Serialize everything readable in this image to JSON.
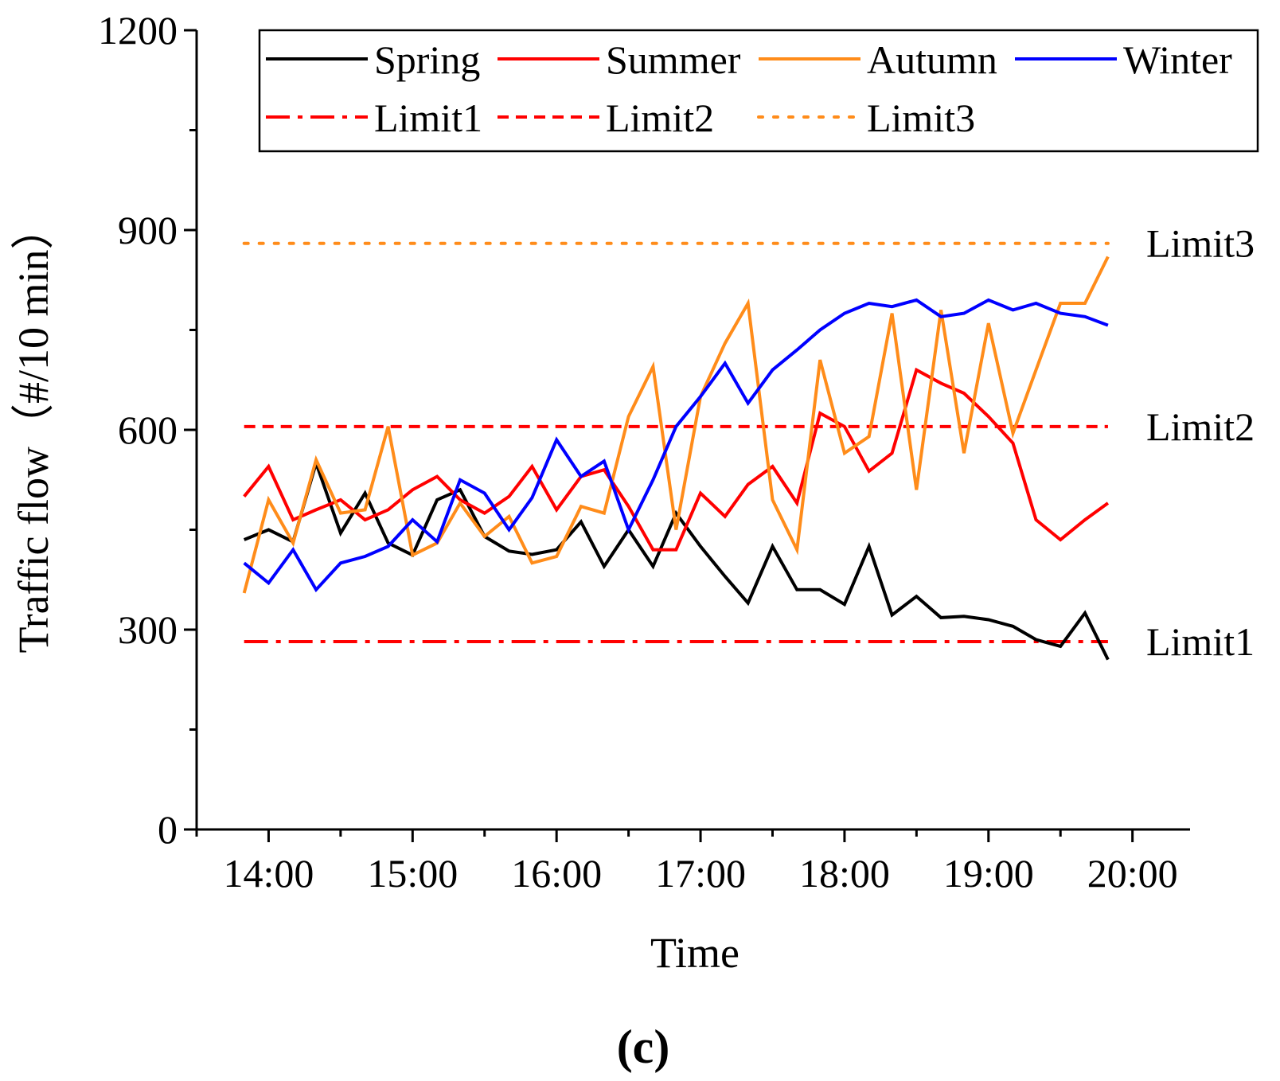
{
  "chart_data": {
    "type": "line",
    "caption": "(c)",
    "xlabel": "Time",
    "ylabel": "Traffic flow（#/10 min）",
    "ylim": [
      0,
      1200
    ],
    "yticks": [
      0,
      300,
      600,
      900,
      1200
    ],
    "xlim": [
      13.5,
      20.4
    ],
    "xtick_values": [
      14,
      15,
      16,
      17,
      18,
      19,
      20
    ],
    "xticks": [
      "14:00",
      "15:00",
      "16:00",
      "17:00",
      "18:00",
      "19:00",
      "20:00"
    ],
    "x": [
      13.83,
      14.0,
      14.17,
      14.33,
      14.5,
      14.67,
      14.83,
      15.0,
      15.17,
      15.33,
      15.5,
      15.67,
      15.83,
      16.0,
      16.17,
      16.33,
      16.5,
      16.67,
      16.83,
      17.0,
      17.17,
      17.33,
      17.5,
      17.67,
      17.83,
      18.0,
      18.17,
      18.33,
      18.5,
      18.67,
      18.83,
      19.0,
      19.17,
      19.33,
      19.5,
      19.67,
      19.83
    ],
    "series": [
      {
        "name": "Spring",
        "color": "#000000",
        "values": [
          435,
          450,
          432,
          550,
          445,
          505,
          430,
          412,
          495,
          510,
          440,
          418,
          413,
          420,
          462,
          395,
          450,
          395,
          475,
          425,
          380,
          340,
          425,
          360,
          360,
          338,
          425,
          322,
          350,
          318,
          320,
          315,
          305,
          285,
          275,
          325,
          255
        ]
      },
      {
        "name": "Summer",
        "color": "#ff0000",
        "values": [
          500,
          545,
          465,
          480,
          495,
          465,
          480,
          510,
          530,
          495,
          475,
          500,
          545,
          480,
          530,
          540,
          485,
          420,
          420,
          505,
          470,
          518,
          545,
          490,
          625,
          605,
          538,
          565,
          690,
          670,
          655,
          620,
          580,
          465,
          435,
          465,
          490
        ]
      },
      {
        "name": "Autumn",
        "color": "#ff8c1a",
        "values": [
          355,
          495,
          430,
          555,
          475,
          480,
          605,
          412,
          430,
          490,
          440,
          470,
          400,
          410,
          485,
          475,
          620,
          695,
          450,
          650,
          730,
          790,
          495,
          420,
          705,
          565,
          590,
          775,
          510,
          780,
          565,
          760,
          595,
          690,
          790,
          790,
          860
        ]
      },
      {
        "name": "Winter",
        "color": "#0000ff",
        "values": [
          400,
          370,
          420,
          360,
          400,
          410,
          425,
          465,
          432,
          525,
          505,
          450,
          498,
          585,
          530,
          553,
          450,
          525,
          605,
          650,
          700,
          640,
          690,
          720,
          750,
          775,
          790,
          785,
          795,
          770,
          775,
          795,
          780,
          790,
          775,
          770,
          757
        ]
      }
    ],
    "limits": [
      {
        "name": "Limit1",
        "label": "Limit1",
        "value": 282,
        "color": "#ff0000",
        "style": "dash-dot"
      },
      {
        "name": "Limit2",
        "label": "Limit2",
        "value": 605,
        "color": "#ff0000",
        "style": "dash"
      },
      {
        "name": "Limit3",
        "label": "Limit3",
        "value": 880,
        "color": "#ff8c1a",
        "style": "dot"
      }
    ],
    "legend_position": "top"
  }
}
